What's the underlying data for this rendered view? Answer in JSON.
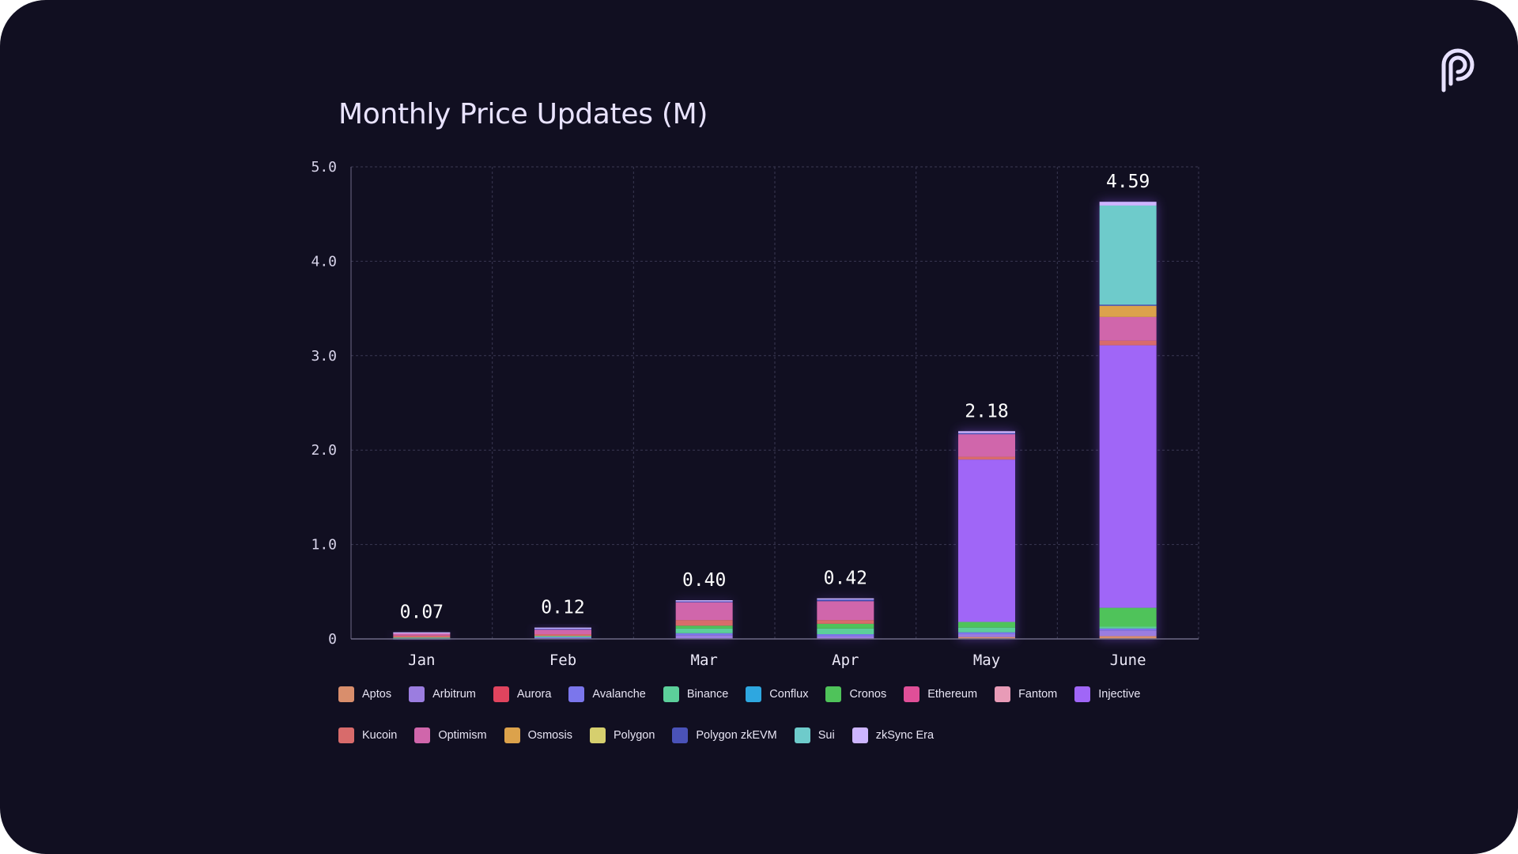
{
  "chart_data": {
    "type": "bar",
    "stacked": true,
    "title": "Monthly Price Updates (M)",
    "xlabel": "",
    "ylabel": "",
    "ylim": [
      0,
      5
    ],
    "yticks": [
      "0",
      "1.0",
      "2.0",
      "3.0",
      "4.0",
      "5.0"
    ],
    "grid": true,
    "legend_position": "bottom",
    "categories": [
      "Jan",
      "Feb",
      "Mar",
      "Apr",
      "May",
      "June"
    ],
    "totals": [
      "0.07",
      "0.12",
      "0.40",
      "0.42",
      "2.18",
      "4.59"
    ],
    "series": [
      {
        "name": "Aptos",
        "color": "#d98e6c",
        "values": [
          0,
          0,
          0,
          0,
          0.02,
          0.03
        ]
      },
      {
        "name": "Arbitrum",
        "color": "#9b7de0",
        "values": [
          0.005,
          0.01,
          0.04,
          0.03,
          0.03,
          0.06
        ]
      },
      {
        "name": "Aurora",
        "color": "#e0445e",
        "values": [
          0,
          0,
          0,
          0,
          0,
          0
        ]
      },
      {
        "name": "Avalanche",
        "color": "#7b76ec",
        "values": [
          0.005,
          0.01,
          0.02,
          0.02,
          0.02,
          0.02
        ]
      },
      {
        "name": "Binance",
        "color": "#5ccf9a",
        "values": [
          0.005,
          0.01,
          0.05,
          0.06,
          0.05,
          0.02
        ]
      },
      {
        "name": "Conflux",
        "color": "#2ea7e0",
        "values": [
          0,
          0,
          0,
          0,
          0,
          0
        ]
      },
      {
        "name": "Cronos",
        "color": "#4fc35a",
        "values": [
          0,
          0,
          0.03,
          0.05,
          0.06,
          0.2
        ]
      },
      {
        "name": "Ethereum",
        "color": "#e04f98",
        "values": [
          0,
          0,
          0,
          0,
          0,
          0
        ]
      },
      {
        "name": "Fantom",
        "color": "#e89bb7",
        "values": [
          0,
          0,
          0,
          0,
          0,
          0
        ]
      },
      {
        "name": "Injective",
        "color": "#a066f7",
        "values": [
          0,
          0,
          0,
          0,
          1.72,
          2.78
        ]
      },
      {
        "name": "Kucoin",
        "color": "#d86b6b",
        "values": [
          0.02,
          0.02,
          0.06,
          0.04,
          0.03,
          0.05
        ]
      },
      {
        "name": "Optimism",
        "color": "#d066ab",
        "values": [
          0.03,
          0.05,
          0.19,
          0.2,
          0.24,
          0.25
        ]
      },
      {
        "name": "Osmosis",
        "color": "#dca24b",
        "values": [
          0,
          0,
          0,
          0,
          0,
          0.12
        ]
      },
      {
        "name": "Polygon",
        "color": "#d6cf6e",
        "values": [
          0,
          0,
          0,
          0,
          0,
          0
        ]
      },
      {
        "name": "Polygon zkEVM",
        "color": "#4a52b8",
        "values": [
          0,
          0.01,
          0.01,
          0.02,
          0.01,
          0.01
        ]
      },
      {
        "name": "Sui",
        "color": "#6ecbcb",
        "values": [
          0,
          0,
          0,
          0,
          0,
          1.05
        ]
      },
      {
        "name": "zkSync Era",
        "color": "#cdb5ff",
        "values": [
          0.005,
          0.01,
          0.01,
          0.01,
          0.02,
          0.04
        ]
      }
    ]
  },
  "legend_order": [
    "Aptos",
    "Arbitrum",
    "Aurora",
    "Avalanche",
    "Binance",
    "Conflux",
    "Cronos",
    "Ethereum",
    "Fantom",
    "Injective",
    "Kucoin",
    "Optimism",
    "Osmosis",
    "Polygon",
    "Polygon zkEVM",
    "Sui",
    "zkSync Era"
  ],
  "logo": {
    "icon": "pyth-logo-icon"
  },
  "colors": {
    "background": "#110f21",
    "grid": "#3a3852",
    "axis": "#6e6a86"
  }
}
